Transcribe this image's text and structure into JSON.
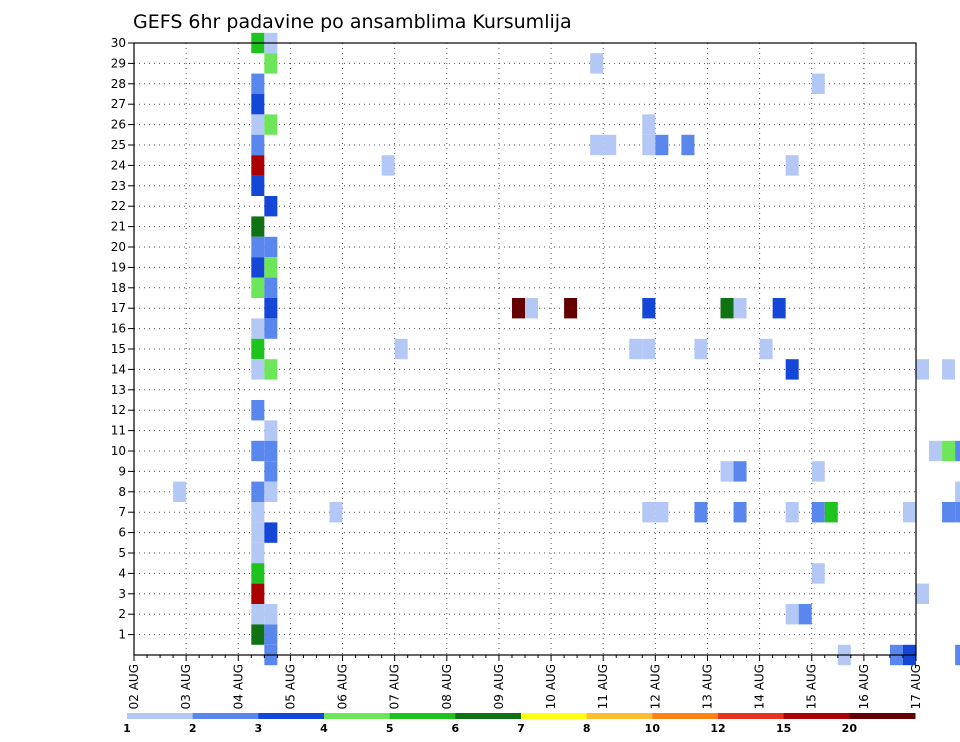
{
  "chart_data": {
    "type": "heatmap",
    "title": "GEFS 6hr padavine po ansamblima Kursumlija",
    "xlabel": "",
    "ylabel": "",
    "x_tick_labels": [
      "02 AUG",
      "03 AUG",
      "04 AUG",
      "05 AUG",
      "06 AUG",
      "07 AUG",
      "08 AUG",
      "09 AUG",
      "10 AUG",
      "11 AUG",
      "12 AUG",
      "13 AUG",
      "14 AUG",
      "15 AUG",
      "16 AUG",
      "17 AUG"
    ],
    "x_range_days": [
      0,
      15
    ],
    "y_tick_labels": [
      "1",
      "2",
      "3",
      "4",
      "5",
      "6",
      "7",
      "8",
      "9",
      "10",
      "11",
      "12",
      "13",
      "14",
      "15",
      "16",
      "17",
      "18",
      "19",
      "20",
      "21",
      "22",
      "23",
      "24",
      "25",
      "26",
      "27",
      "28",
      "29",
      "30"
    ],
    "y_range": [
      0,
      30
    ],
    "grid": true,
    "legend": {
      "placement": "bottom",
      "levels": [
        "1",
        "2",
        "3",
        "4",
        "5",
        "6",
        "7",
        "8",
        "10",
        "12",
        "15",
        "20"
      ],
      "colors": [
        "#b4c8f5",
        "#5a87ee",
        "#1446d7",
        "#6ee65a",
        "#1ec31e",
        "#0f7314",
        "#ffff14",
        "#ffbe32",
        "#ff8214",
        "#e6321e",
        "#aa0000",
        "#640000"
      ]
    },
    "cells": [
      {
        "t": 2.375,
        "m": 30,
        "c": 5
      },
      {
        "t": 2.625,
        "m": 30,
        "c": 1
      },
      {
        "t": 2.625,
        "m": 29,
        "c": 4
      },
      {
        "t": 2.375,
        "m": 28,
        "c": 2
      },
      {
        "t": 2.375,
        "m": 27,
        "c": 3
      },
      {
        "t": 2.375,
        "m": 26,
        "c": 1
      },
      {
        "t": 2.625,
        "m": 26,
        "c": 4
      },
      {
        "t": 2.375,
        "m": 25,
        "c": 2
      },
      {
        "t": 2.375,
        "m": 24,
        "c": 11
      },
      {
        "t": 2.375,
        "m": 23,
        "c": 3
      },
      {
        "t": 2.625,
        "m": 22,
        "c": 3
      },
      {
        "t": 2.375,
        "m": 21,
        "c": 6
      },
      {
        "t": 2.375,
        "m": 20,
        "c": 2
      },
      {
        "t": 2.625,
        "m": 20,
        "c": 2
      },
      {
        "t": 2.375,
        "m": 19,
        "c": 3
      },
      {
        "t": 2.625,
        "m": 19,
        "c": 4
      },
      {
        "t": 2.375,
        "m": 18,
        "c": 4
      },
      {
        "t": 2.625,
        "m": 18,
        "c": 2
      },
      {
        "t": 2.625,
        "m": 17,
        "c": 3
      },
      {
        "t": 2.375,
        "m": 16,
        "c": 1
      },
      {
        "t": 2.625,
        "m": 16,
        "c": 2
      },
      {
        "t": 2.375,
        "m": 15,
        "c": 5
      },
      {
        "t": 2.375,
        "m": 14,
        "c": 1
      },
      {
        "t": 2.625,
        "m": 14,
        "c": 4
      },
      {
        "t": 2.375,
        "m": 12,
        "c": 2
      },
      {
        "t": 2.625,
        "m": 11,
        "c": 1
      },
      {
        "t": 2.375,
        "m": 10,
        "c": 2
      },
      {
        "t": 2.625,
        "m": 10,
        "c": 2
      },
      {
        "t": 2.625,
        "m": 9,
        "c": 2
      },
      {
        "t": 2.375,
        "m": 8,
        "c": 2
      },
      {
        "t": 2.625,
        "m": 8,
        "c": 1
      },
      {
        "t": 2.375,
        "m": 7,
        "c": 1
      },
      {
        "t": 2.375,
        "m": 6,
        "c": 1
      },
      {
        "t": 2.625,
        "m": 6,
        "c": 3
      },
      {
        "t": 2.375,
        "m": 5,
        "c": 1
      },
      {
        "t": 2.375,
        "m": 4,
        "c": 5
      },
      {
        "t": 2.375,
        "m": 3,
        "c": 11
      },
      {
        "t": 2.375,
        "m": 2,
        "c": 1
      },
      {
        "t": 2.625,
        "m": 2,
        "c": 1
      },
      {
        "t": 2.375,
        "m": 1,
        "c": 6
      },
      {
        "t": 2.625,
        "m": 1,
        "c": 2
      },
      {
        "t": 2.625,
        "m": 0,
        "c": 2
      },
      {
        "t": 0.875,
        "m": 8,
        "c": 1
      },
      {
        "t": 3.875,
        "m": 7,
        "c": 1
      },
      {
        "t": 4.875,
        "m": 24,
        "c": 1
      },
      {
        "t": 5.125,
        "m": 15,
        "c": 1
      },
      {
        "t": 7.375,
        "m": 17,
        "c": 12
      },
      {
        "t": 7.625,
        "m": 17,
        "c": 1
      },
      {
        "t": 8.375,
        "m": 17,
        "c": 12
      },
      {
        "t": 8.875,
        "m": 29,
        "c": 1
      },
      {
        "t": 8.875,
        "m": 25,
        "c": 1
      },
      {
        "t": 9.125,
        "m": 25,
        "c": 1
      },
      {
        "t": 9.625,
        "m": 15,
        "c": 1
      },
      {
        "t": 9.875,
        "m": 15,
        "c": 1
      },
      {
        "t": 9.875,
        "m": 26,
        "c": 1
      },
      {
        "t": 9.875,
        "m": 25,
        "c": 1
      },
      {
        "t": 10.125,
        "m": 25,
        "c": 2
      },
      {
        "t": 10.625,
        "m": 25,
        "c": 2
      },
      {
        "t": 9.875,
        "m": 17,
        "c": 3
      },
      {
        "t": 9.875,
        "m": 7,
        "c": 1
      },
      {
        "t": 10.125,
        "m": 7,
        "c": 1
      },
      {
        "t": 10.875,
        "m": 15,
        "c": 1
      },
      {
        "t": 10.875,
        "m": 7,
        "c": 2
      },
      {
        "t": 11.375,
        "m": 17,
        "c": 6
      },
      {
        "t": 11.625,
        "m": 17,
        "c": 1
      },
      {
        "t": 11.375,
        "m": 9,
        "c": 1
      },
      {
        "t": 11.625,
        "m": 9,
        "c": 2
      },
      {
        "t": 11.625,
        "m": 7,
        "c": 2
      },
      {
        "t": 12.375,
        "m": 17,
        "c": 3
      },
      {
        "t": 12.125,
        "m": 15,
        "c": 1
      },
      {
        "t": 12.625,
        "m": 14,
        "c": 3
      },
      {
        "t": 12.625,
        "m": 24,
        "c": 1
      },
      {
        "t": 12.625,
        "m": 7,
        "c": 1
      },
      {
        "t": 12.625,
        "m": 2,
        "c": 1
      },
      {
        "t": 12.875,
        "m": 2,
        "c": 2
      },
      {
        "t": 13.125,
        "m": 28,
        "c": 1
      },
      {
        "t": 13.125,
        "m": 9,
        "c": 1
      },
      {
        "t": 13.125,
        "m": 7,
        "c": 2
      },
      {
        "t": 13.375,
        "m": 7,
        "c": 5
      },
      {
        "t": 13.125,
        "m": 4,
        "c": 1
      },
      {
        "t": 13.625,
        "m": 0,
        "c": 1
      },
      {
        "t": 14.625,
        "m": 0,
        "c": 2
      },
      {
        "t": 14.875,
        "m": 0,
        "c": 3
      },
      {
        "t": 14.875,
        "m": 7,
        "c": 1
      },
      {
        "t": 15.125,
        "m": 14,
        "c": 1
      },
      {
        "t": 15.125,
        "m": 3,
        "c": 1
      },
      {
        "t": 15.625,
        "m": 14,
        "c": 1
      },
      {
        "t": 15.375,
        "m": 10,
        "c": 1
      },
      {
        "t": 15.625,
        "m": 10,
        "c": 4
      },
      {
        "t": 15.875,
        "m": 10,
        "c": 2
      },
      {
        "t": 15.625,
        "m": 7,
        "c": 2
      },
      {
        "t": 15.875,
        "m": 7,
        "c": 2
      },
      {
        "t": 15.875,
        "m": 8,
        "c": 1
      },
      {
        "t": 15.875,
        "m": 0,
        "c": 2
      }
    ]
  }
}
